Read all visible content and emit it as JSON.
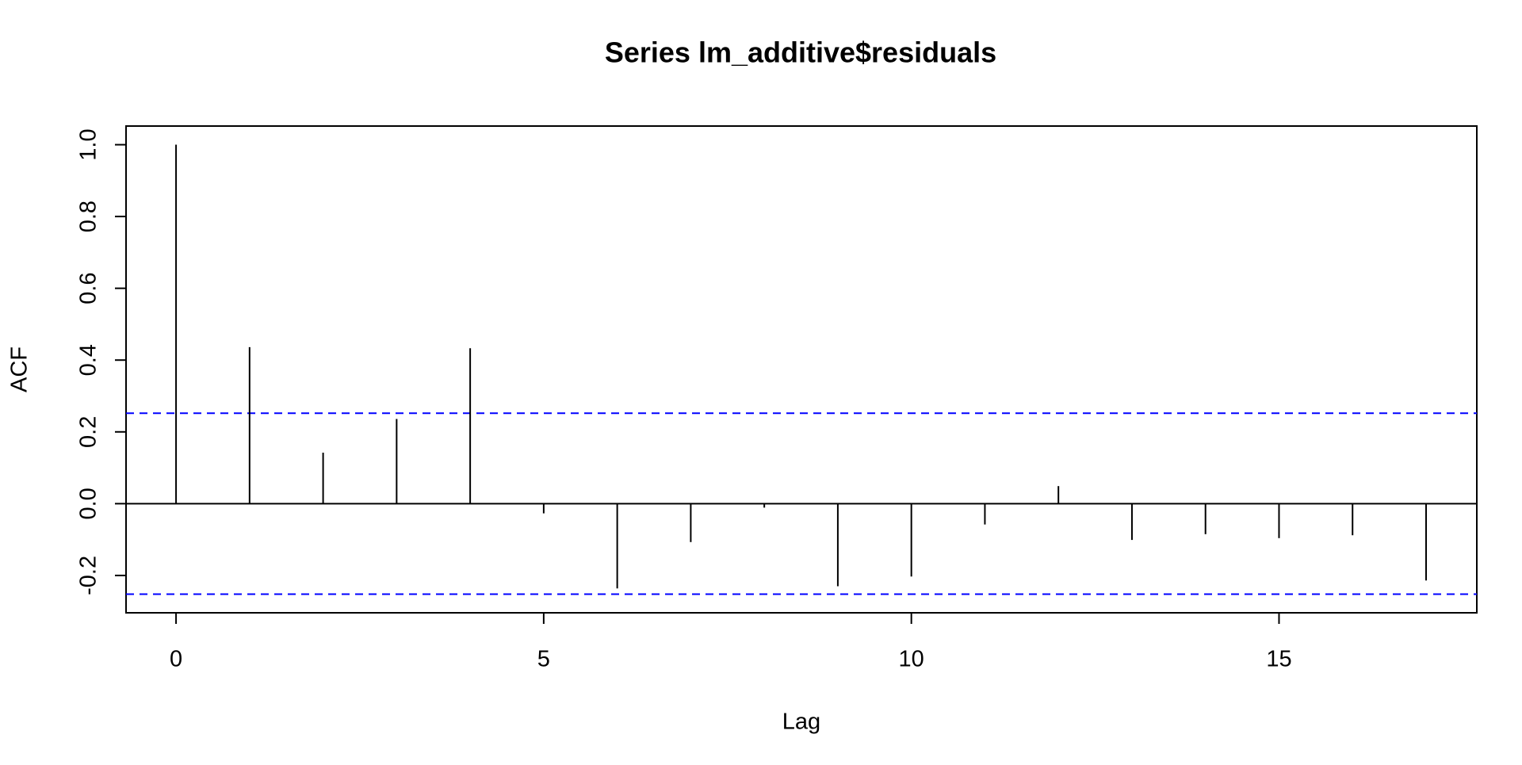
{
  "chart_data": {
    "type": "bar",
    "title": "Series  lm_additive$residuals",
    "x_label": "Lag",
    "y_label": "ACF",
    "x": [
      0,
      1,
      2,
      3,
      4,
      5,
      6,
      7,
      8,
      9,
      10,
      11,
      12,
      13,
      14,
      15,
      16,
      17
    ],
    "values": [
      1.0,
      0.436,
      0.142,
      0.236,
      0.433,
      -0.027,
      -0.236,
      -0.107,
      -0.011,
      -0.23,
      -0.203,
      -0.058,
      0.049,
      -0.101,
      -0.085,
      -0.096,
      -0.088,
      -0.214
    ],
    "color": "#000000",
    "conf_bounds": [
      0.252,
      -0.252
    ],
    "conf_color": "#0000ff",
    "xlim": [
      -0.68,
      17.69
    ],
    "ylim": [
      -0.304,
      1.052
    ],
    "xticks": [
      0,
      5,
      10,
      15
    ],
    "yticks": [
      -0.2,
      {
        "value": 0,
        "label": "0.0"
      },
      0.2,
      0.4,
      0.6,
      0.8,
      {
        "value": 1,
        "label": "1.0"
      }
    ]
  }
}
